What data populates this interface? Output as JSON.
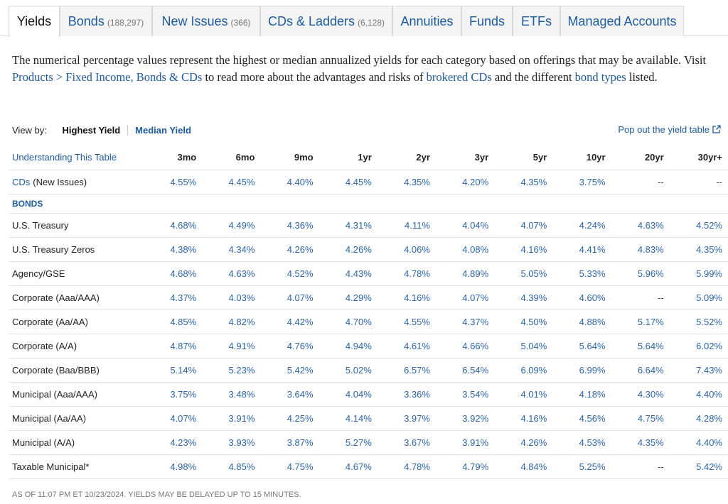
{
  "tabs": [
    {
      "label": "Yields"
    },
    {
      "label": "Bonds",
      "count": "(188,297)"
    },
    {
      "label": "New Issues",
      "count": "(366)"
    },
    {
      "label": "CDs & Ladders",
      "count": "(6,128)"
    },
    {
      "label": "Annuities"
    },
    {
      "label": "Funds"
    },
    {
      "label": "ETFs"
    },
    {
      "label": "Managed Accounts"
    }
  ],
  "active_tab": 0,
  "intro": [
    {
      "text": "The numerical percentage values represent the highest or median annualized yields for each category based on offerings that may be available. Visit "
    },
    {
      "text": "Products > Fixed Income, Bonds & CDs",
      "link": true
    },
    {
      "text": " to read more about the advantages and risks of "
    },
    {
      "text": "brokered CDs",
      "link": true
    },
    {
      "text": " and the different "
    },
    {
      "text": "bond types",
      "link": true
    },
    {
      "text": " listed."
    }
  ],
  "view_by": {
    "label": "View by:",
    "options": [
      "Highest Yield",
      "Median Yield"
    ],
    "selected": 0
  },
  "popout": "Pop out the yield table",
  "table": {
    "corner": "Understanding This Table",
    "columns": [
      "3mo",
      "6mo",
      "9mo",
      "1yr",
      "2yr",
      "3yr",
      "5yr",
      "10yr",
      "20yr",
      "30yr+"
    ],
    "rows": [
      {
        "label": "CDs",
        "note": "(New Issues)",
        "values": [
          "4.55%",
          "4.45%",
          "4.40%",
          "4.45%",
          "4.35%",
          "4.20%",
          "4.35%",
          "3.75%",
          "--",
          "--"
        ]
      },
      {
        "section": "BONDS"
      },
      {
        "label": "U.S. Treasury",
        "values": [
          "4.68%",
          "4.49%",
          "4.36%",
          "4.31%",
          "4.11%",
          "4.04%",
          "4.07%",
          "4.24%",
          "4.63%",
          "4.52%"
        ]
      },
      {
        "label": "U.S. Treasury Zeros",
        "values": [
          "4.38%",
          "4.34%",
          "4.26%",
          "4.26%",
          "4.06%",
          "4.08%",
          "4.16%",
          "4.41%",
          "4.83%",
          "4.35%"
        ]
      },
      {
        "label": "Agency/GSE",
        "values": [
          "4.68%",
          "4.63%",
          "4.52%",
          "4.43%",
          "4.78%",
          "4.89%",
          "5.05%",
          "5.33%",
          "5.96%",
          "5.99%"
        ]
      },
      {
        "label": "Corporate (Aaa/AAA)",
        "values": [
          "4.37%",
          "4.03%",
          "4.07%",
          "4.29%",
          "4.16%",
          "4.07%",
          "4.39%",
          "4.60%",
          "--",
          "5.09%"
        ]
      },
      {
        "label": "Corporate (Aa/AA)",
        "values": [
          "4.85%",
          "4.82%",
          "4.42%",
          "4.70%",
          "4.55%",
          "4.37%",
          "4.50%",
          "4.88%",
          "5.17%",
          "5.52%"
        ]
      },
      {
        "label": "Corporate (A/A)",
        "values": [
          "4.87%",
          "4.91%",
          "4.76%",
          "4.94%",
          "4.61%",
          "4.66%",
          "5.04%",
          "5.64%",
          "5.64%",
          "6.02%"
        ]
      },
      {
        "label": "Corporate (Baa/BBB)",
        "values": [
          "5.14%",
          "5.23%",
          "5.42%",
          "5.02%",
          "6.57%",
          "6.54%",
          "6.09%",
          "6.99%",
          "6.64%",
          "7.43%"
        ]
      },
      {
        "label": "Municipal (Aaa/AAA)",
        "values": [
          "3.75%",
          "3.48%",
          "3.64%",
          "4.04%",
          "3.36%",
          "3.54%",
          "4.01%",
          "4.18%",
          "4.30%",
          "4.40%"
        ]
      },
      {
        "label": "Municipal (Aa/AA)",
        "values": [
          "4.07%",
          "3.91%",
          "4.25%",
          "4.14%",
          "3.97%",
          "3.92%",
          "4.16%",
          "4.56%",
          "4.75%",
          "4.28%"
        ]
      },
      {
        "label": "Municipal (A/A)",
        "values": [
          "4.23%",
          "3.93%",
          "3.87%",
          "5.27%",
          "3.67%",
          "3.91%",
          "4.26%",
          "4.53%",
          "4.35%",
          "4.40%"
        ]
      },
      {
        "label": "Taxable Municipal*",
        "values": [
          "4.98%",
          "4.85%",
          "4.75%",
          "4.67%",
          "4.78%",
          "4.79%",
          "4.84%",
          "5.25%",
          "--",
          "5.42%"
        ]
      }
    ]
  },
  "footer": "AS OF 11:07 PM ET 10/23/2024. YIELDS MAY BE DELAYED UP TO 15 MINUTES."
}
